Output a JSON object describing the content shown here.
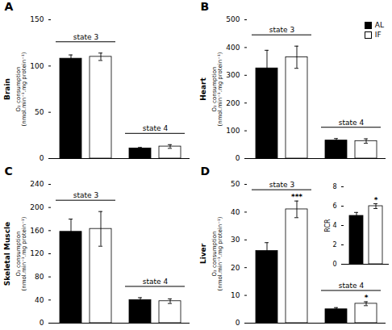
{
  "chart_data": [
    {
      "type": "bar",
      "panel_label": "A",
      "title": "Brain",
      "ylabel": "O₂ consumption\n(nmol.min⁻¹.mg protein⁻¹)",
      "categories": [
        "state 3",
        "state 4"
      ],
      "series": [
        {
          "name": "AL",
          "color": "#000000",
          "values": [
            108,
            11
          ],
          "errors": [
            4,
            1
          ]
        },
        {
          "name": "IF",
          "color": "#ffffff",
          "values": [
            110,
            13
          ],
          "errors": [
            4,
            2
          ]
        }
      ],
      "ylim": [
        0,
        150
      ],
      "yticks": [
        0,
        50,
        100,
        150
      ],
      "tick_labels": "y"
    },
    {
      "type": "bar",
      "panel_label": "B",
      "title": "Heart",
      "ylabel": "O₂ consumption\n(nmol.min⁻¹.mg protein⁻¹)",
      "categories": [
        "state 3",
        "state 4"
      ],
      "series": [
        {
          "name": "AL",
          "color": "#000000",
          "values": [
            325,
            65
          ],
          "errors": [
            65,
            7
          ]
        },
        {
          "name": "IF",
          "color": "#ffffff",
          "values": [
            365,
            63
          ],
          "errors": [
            40,
            8
          ]
        }
      ],
      "ylim": [
        0,
        500
      ],
      "yticks": [
        0,
        100,
        200,
        300,
        400,
        500
      ],
      "tick_labels": "y",
      "legend": "upper right"
    },
    {
      "type": "bar",
      "panel_label": "C",
      "title": "Skeletal Muscle",
      "ylabel": "O₂ consumption\n(nmol.min⁻¹.mg protein⁻¹)",
      "categories": [
        "state 3",
        "state 4"
      ],
      "series": [
        {
          "name": "AL",
          "color": "#000000",
          "values": [
            158,
            40
          ],
          "errors": [
            22,
            4
          ]
        },
        {
          "name": "IF",
          "color": "#ffffff",
          "values": [
            163,
            38
          ],
          "errors": [
            30,
            4
          ]
        }
      ],
      "ylim": [
        0,
        240
      ],
      "yticks": [
        0,
        40,
        80,
        120,
        160,
        200,
        240
      ],
      "tick_labels": "y"
    },
    {
      "type": "bar",
      "panel_label": "D",
      "title": "Liver",
      "ylabel": "O₂ consumption\n(nmol.min⁻¹.mg protein⁻¹)",
      "categories": [
        "state 3",
        "state 4"
      ],
      "series": [
        {
          "name": "AL",
          "color": "#000000",
          "values": [
            26,
            5.0
          ],
          "errors": [
            3,
            0.6
          ]
        },
        {
          "name": "IF",
          "color": "#ffffff",
          "values": [
            41,
            7.0
          ],
          "errors": [
            3,
            0.7
          ]
        }
      ],
      "ylim": [
        0,
        50
      ],
      "yticks": [
        0,
        10,
        20,
        30,
        40,
        50
      ],
      "tick_labels": "y",
      "annotations": [
        {
          "text": "***",
          "category": "state 3",
          "series": "IF"
        },
        {
          "text": "*",
          "category": "state 4",
          "series": "IF"
        }
      ],
      "inset": {
        "type": "bar",
        "ylabel": "RCR",
        "categories": [
          null
        ],
        "series": [
          {
            "name": "AL",
            "color": "#000000",
            "values": [
              5.0
            ],
            "errors": [
              0.35
            ]
          },
          {
            "name": "IF",
            "color": "#ffffff",
            "values": [
              6.0
            ],
            "errors": [
              0.25
            ]
          }
        ],
        "ylim": [
          0,
          8
        ],
        "yticks": [
          0,
          2,
          4,
          6,
          8
        ],
        "tick_labels": "y",
        "annotations": [
          {
            "text": "*",
            "series": "IF"
          }
        ]
      }
    }
  ]
}
